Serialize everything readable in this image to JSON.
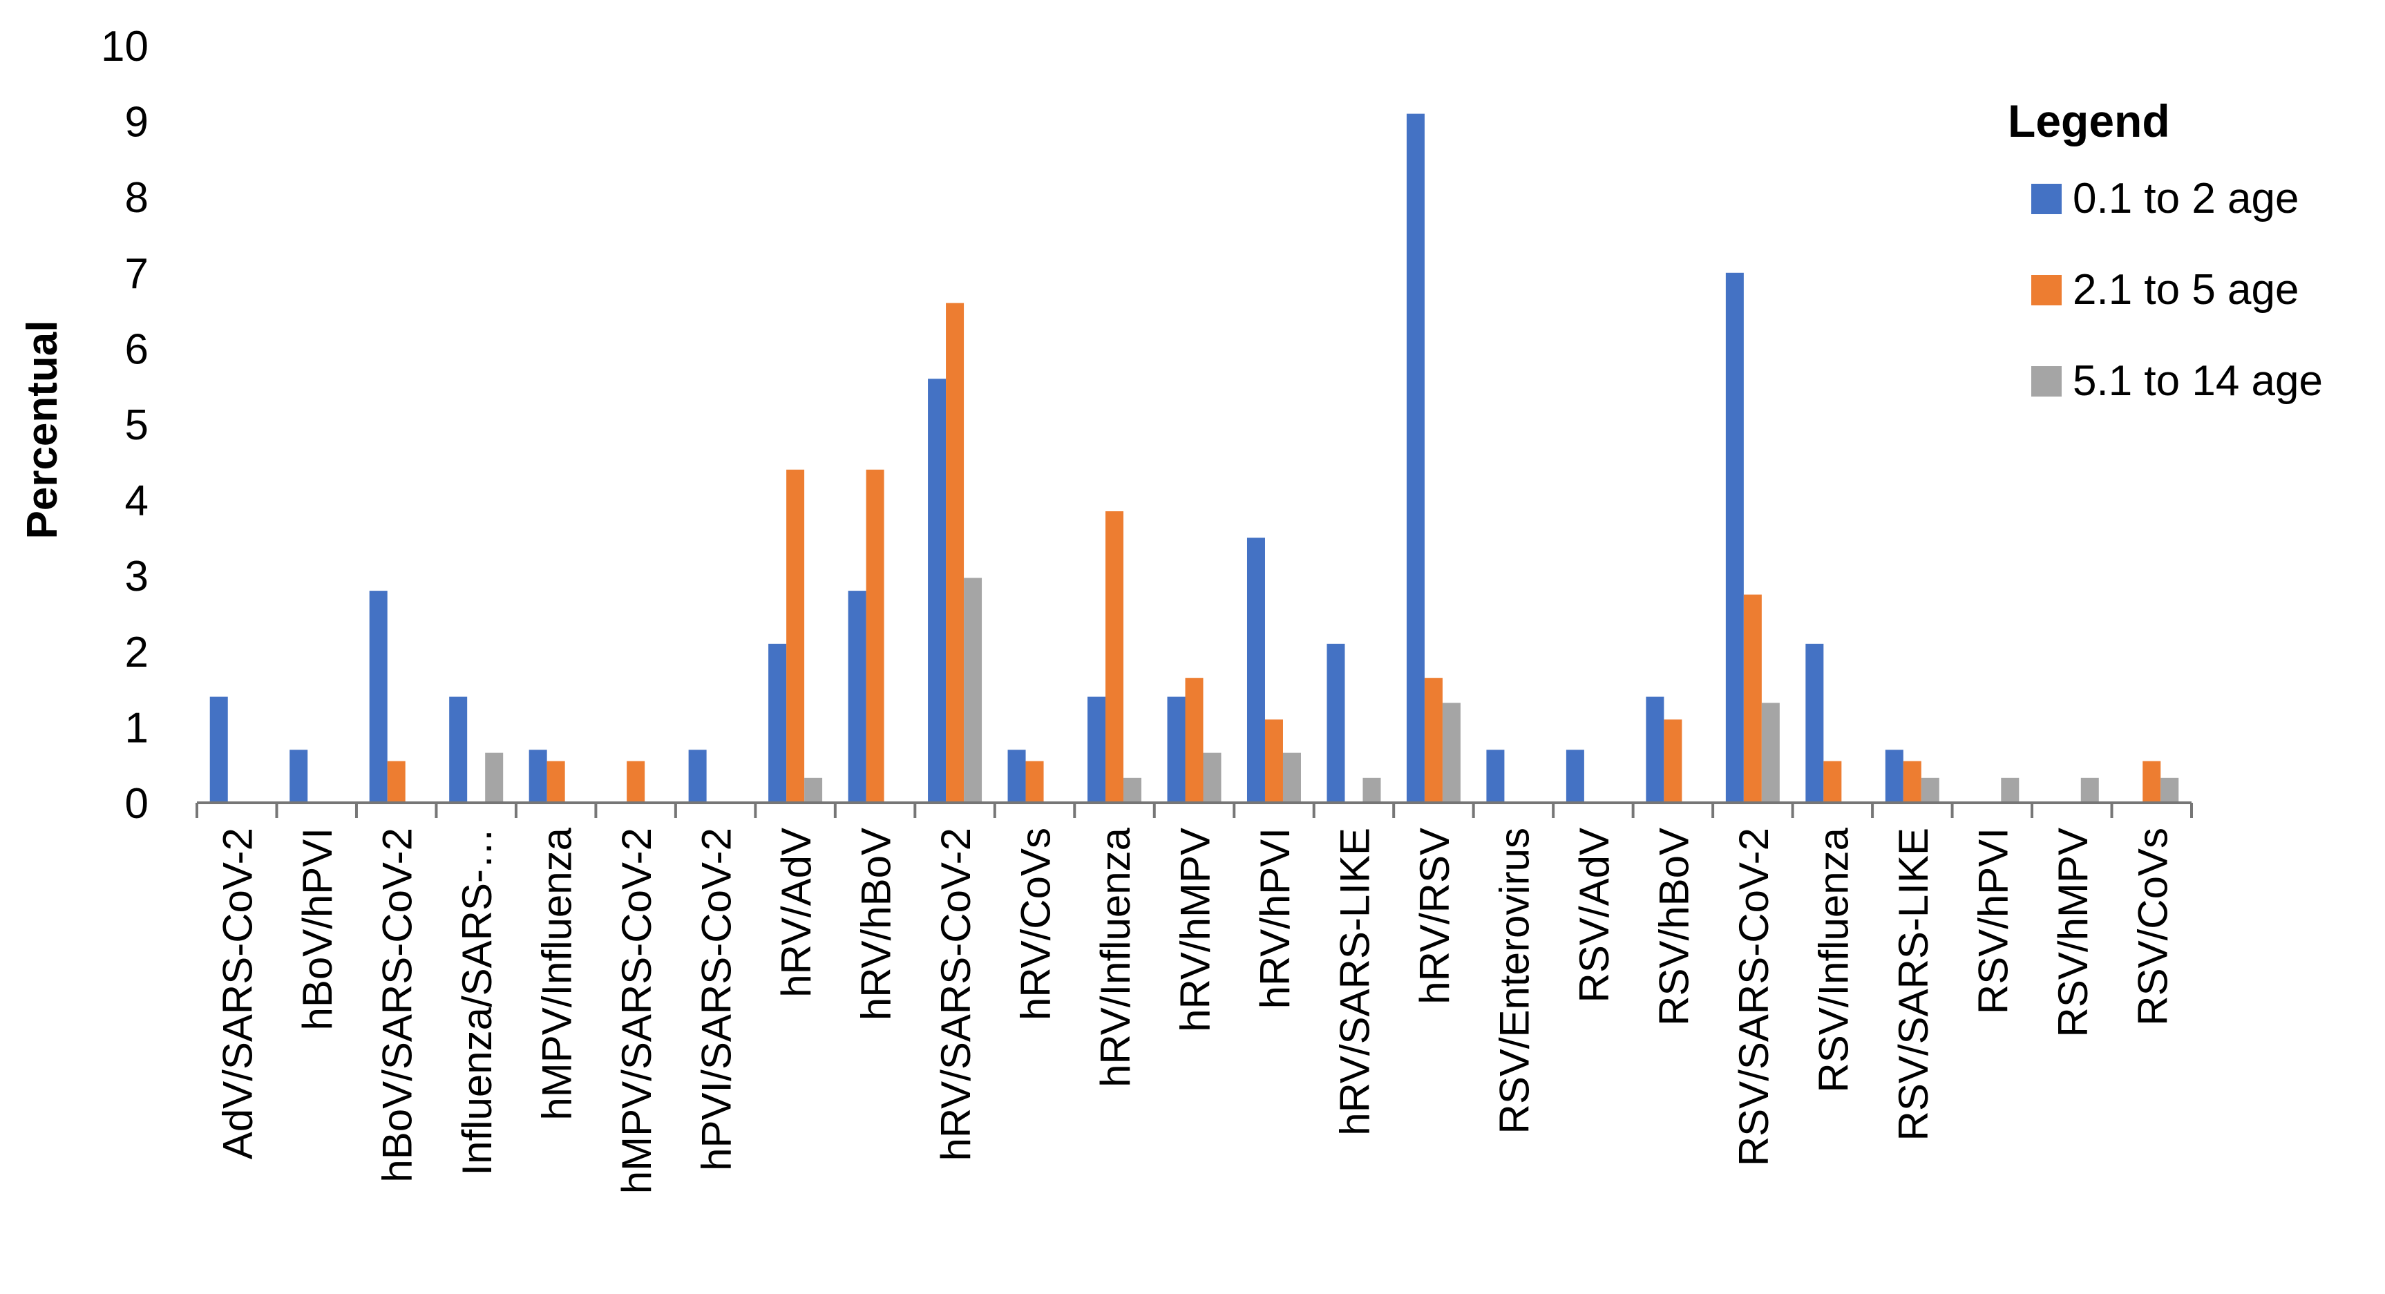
{
  "chart_data": {
    "type": "bar",
    "ylabel": "Percentual",
    "xlabel": "",
    "ylim": [
      0,
      10
    ],
    "yticks": [
      "0",
      "1",
      "2",
      "3",
      "4",
      "5",
      "6",
      "7",
      "8",
      "9",
      "10"
    ],
    "grid": false,
    "legend_position": "top-right",
    "legend_title": "Legend",
    "categories": [
      "AdV/SARS-CoV-2",
      "hBoV/hPVI",
      "hBoV/SARS-CoV-2",
      "Influenza/SARS-…",
      "hMPV/Influenza",
      "hMPV/SARS-CoV-2",
      "hPVI/SARS-CoV-2",
      "hRV/AdV",
      "hRV/hBoV",
      "hRV/SARS-CoV-2",
      "hRV/CoVs",
      "hRV/Influenza",
      "hRV/hMPV",
      "hRV/hPVI",
      "hRV/SARS-LIKE",
      "hRV/RSV",
      "RSV/Enterovirus",
      "RSV/AdV",
      "RSV/hBoV",
      "RSV/SARS-CoV-2",
      "RSV/Influenza",
      "RSV/SARS-LIKE",
      "RSV/hPVI",
      "RSV/hMPV",
      "RSV/CoVs"
    ],
    "series": [
      {
        "name": "0.1 to 2 age",
        "color": "#4472C4",
        "values": [
          1.4,
          0.7,
          2.8,
          1.4,
          0.7,
          0,
          0.7,
          2.1,
          2.8,
          5.6,
          0.7,
          1.4,
          1.4,
          3.5,
          2.1,
          9.1,
          0.7,
          0.7,
          1.4,
          7.0,
          2.1,
          0.7,
          0,
          0,
          0
        ]
      },
      {
        "name": "2.1 to 5 age",
        "color": "#ED7D31",
        "values": [
          0,
          0,
          0.55,
          0,
          0.55,
          0.55,
          0,
          4.4,
          4.4,
          6.6,
          0.55,
          3.85,
          1.65,
          1.1,
          0,
          1.65,
          0,
          0,
          1.1,
          2.75,
          0.55,
          0.55,
          0,
          0,
          0.55
        ]
      },
      {
        "name": "5.1 to 14 age",
        "color": "#A5A5A5",
        "values": [
          0,
          0,
          0,
          0.66,
          0,
          0,
          0,
          0.33,
          0,
          2.97,
          0,
          0.33,
          0.66,
          0.66,
          0.33,
          1.32,
          0,
          0,
          0,
          1.32,
          0,
          0.33,
          0.33,
          0.33,
          0.33
        ]
      }
    ]
  }
}
